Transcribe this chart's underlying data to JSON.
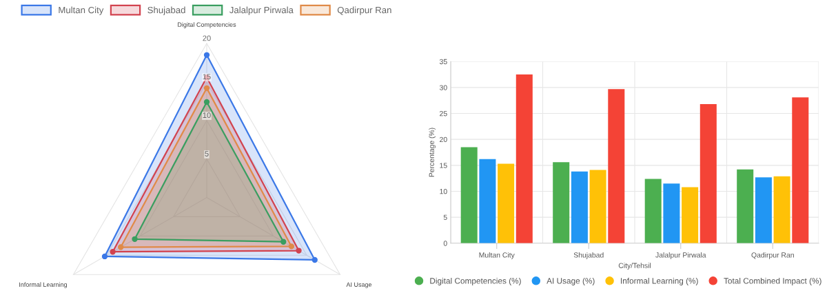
{
  "chart_data": [
    {
      "type": "radar",
      "categories": [
        "Digital Competencies",
        "AI Usage",
        "Informal Learning"
      ],
      "ylim": [
        0,
        20
      ],
      "yticks": [
        5,
        10,
        15,
        20
      ],
      "grid": true,
      "legend": "top",
      "marker": "circle",
      "series": [
        {
          "name": "Multan City",
          "color": "#3b78e7",
          "values": [
            18.5,
            16.2,
            15.3
          ]
        },
        {
          "name": "Shujabad",
          "color": "#d2434f",
          "values": [
            15.6,
            13.8,
            14.1
          ]
        },
        {
          "name": "Jalalpur Pirwala",
          "color": "#3a9e60",
          "values": [
            12.4,
            11.5,
            10.8
          ]
        },
        {
          "name": "Qadirpur Ran",
          "color": "#e08a48",
          "values": [
            14.2,
            12.7,
            12.9
          ]
        }
      ]
    },
    {
      "type": "bar",
      "categories": [
        "Multan City",
        "Shujabad",
        "Jalalpur Pirwala",
        "Qadirpur Ran"
      ],
      "xlabel": "City/Tehsil",
      "ylabel": "Percentage (%)",
      "ylim": [
        0,
        35
      ],
      "yticks": [
        0,
        5,
        10,
        15,
        20,
        25,
        30,
        35
      ],
      "grid": true,
      "legend": "bottom",
      "series": [
        {
          "name": "Digital Competencies (%)",
          "color": "#4caf50",
          "values": [
            18.5,
            15.6,
            12.4,
            14.2
          ]
        },
        {
          "name": "AI Usage (%)",
          "color": "#2196f3",
          "values": [
            16.2,
            13.8,
            11.5,
            12.7
          ]
        },
        {
          "name": "Informal Learning (%)",
          "color": "#ffc107",
          "values": [
            15.3,
            14.1,
            10.8,
            12.9
          ]
        },
        {
          "name": "Total Combined Impact (%)",
          "color": "#f44336",
          "values": [
            32.5,
            29.7,
            26.8,
            28.1
          ]
        }
      ]
    }
  ]
}
